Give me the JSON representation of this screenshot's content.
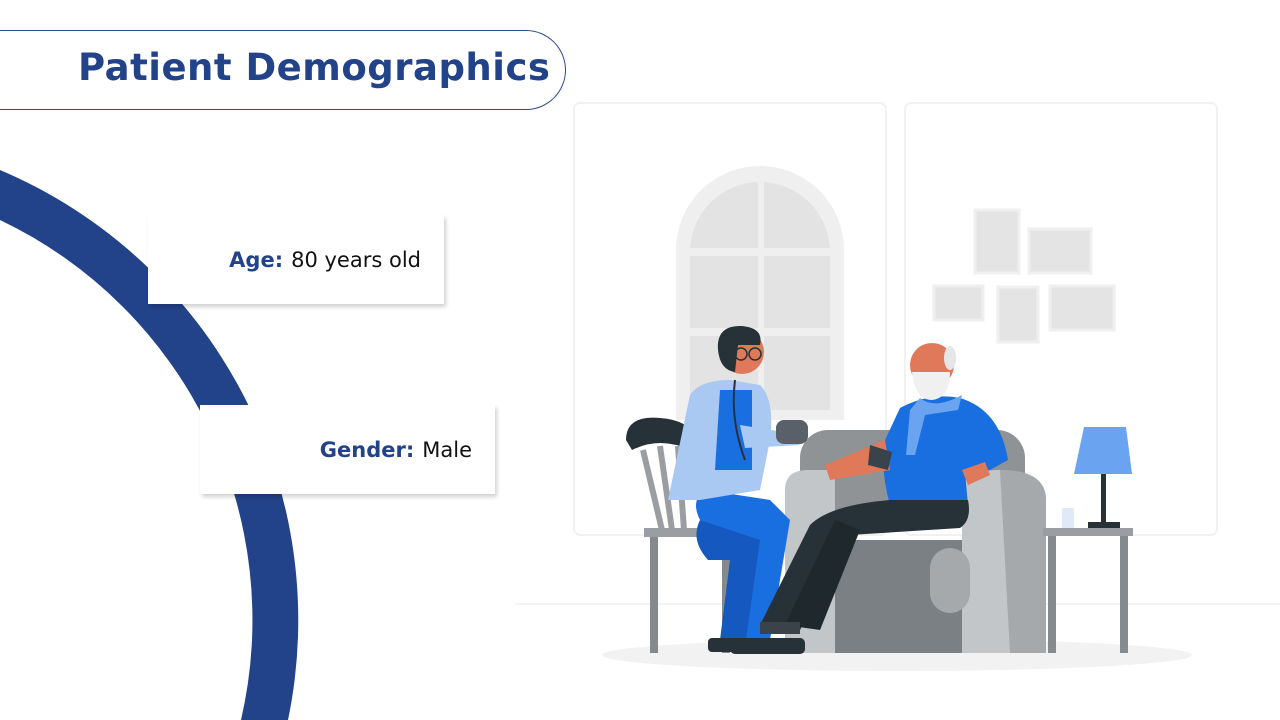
{
  "slide": {
    "title": "Patient Demographics",
    "fields": [
      {
        "label": "Age:",
        "value": "80 years old"
      },
      {
        "label": "Gender:",
        "value": "Male"
      }
    ]
  },
  "colors": {
    "accent": "#22428a",
    "illustration_blue": "#1a6fe0",
    "light_blue": "#a9c8f2",
    "gray": "#9a9ea2"
  },
  "illustration": "doctor-measuring-blood-pressure-of-elderly-man"
}
